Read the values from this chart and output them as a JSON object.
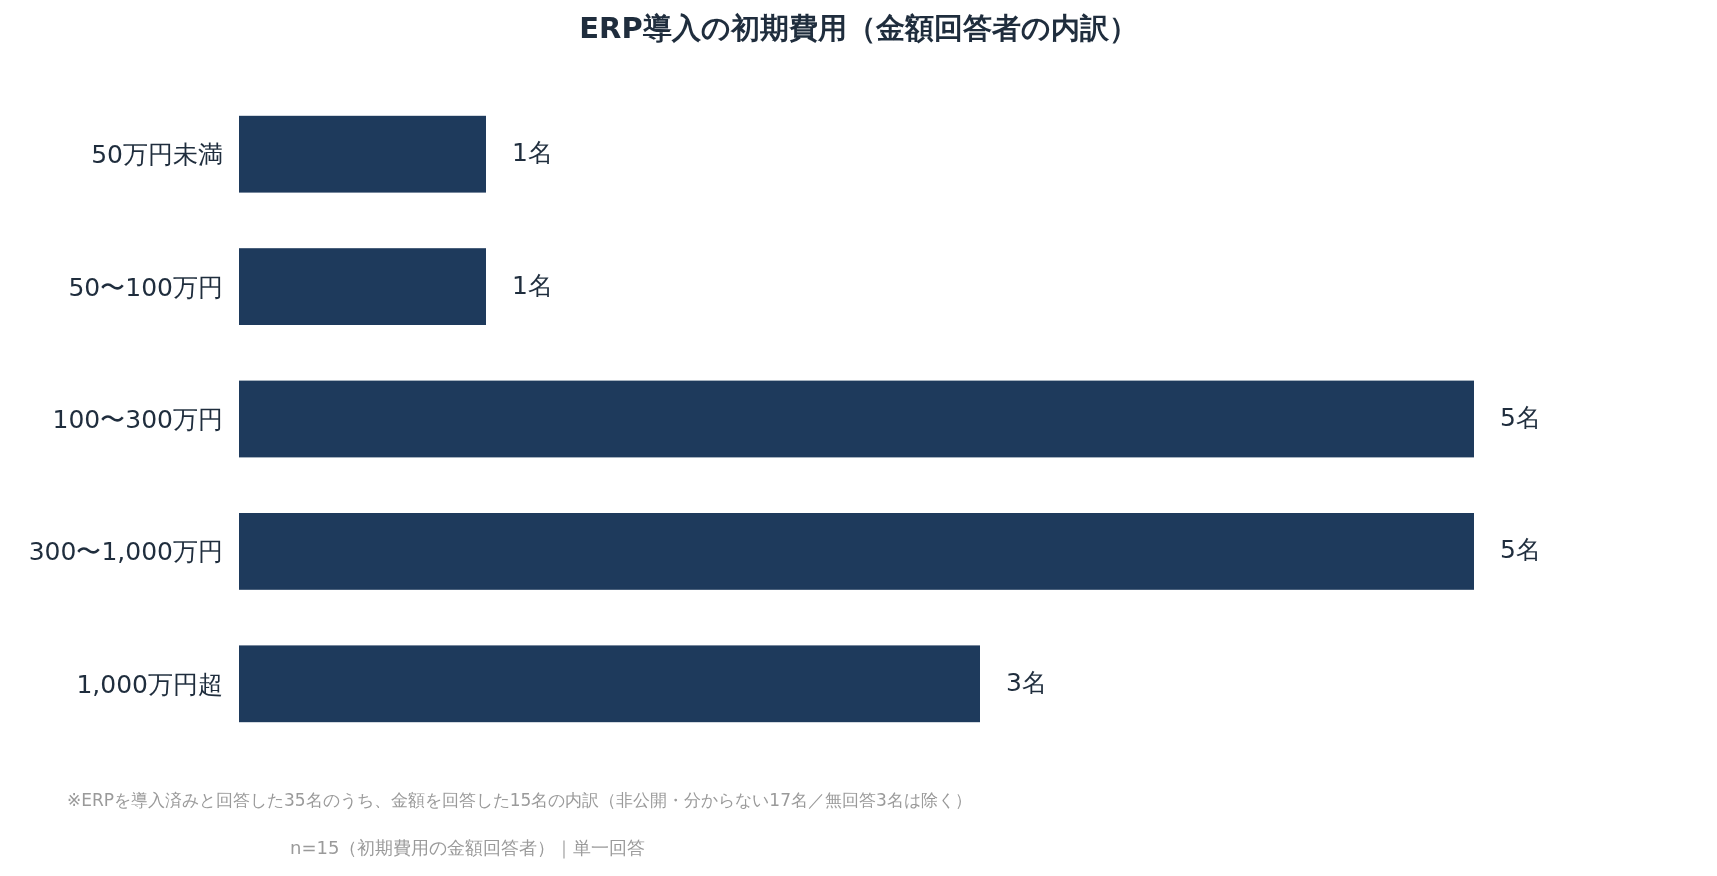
{
  "chart_data": {
    "type": "bar",
    "orientation": "horizontal",
    "title": "ERP導入の初期費用（金額回答者の内訳）",
    "categories": [
      "50万円未満",
      "50〜100万円",
      "100〜300万円",
      "300〜1,000万円",
      "1,000万円超"
    ],
    "values": [
      1,
      1,
      5,
      5,
      3
    ],
    "value_labels": [
      "1名",
      "1名",
      "5名",
      "5名",
      "3名"
    ],
    "color": "#1e3a5c",
    "annotations": [
      "※ERPを導入済みと回答した35名のうち、金額を回答した15名の内訳（非公開・分からない17名／無回答3名は除く）",
      "n=15（初期費用の金額回答者）｜単一回答"
    ]
  }
}
